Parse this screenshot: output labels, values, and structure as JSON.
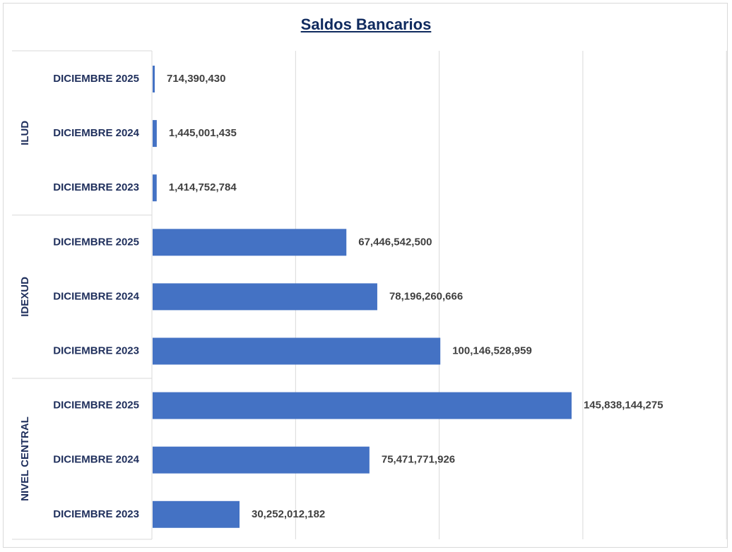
{
  "chart_data": {
    "type": "bar",
    "orientation": "horizontal",
    "title": "Saldos Bancarios",
    "xlabel": "",
    "ylabel": "",
    "xlim": [
      0,
      200000000000
    ],
    "grid": true,
    "legend": "none",
    "bar_color": "#4472c4",
    "groups": [
      {
        "name": "ILUD",
        "categories": [
          "DICIEMBRE 2025",
          "DICIEMBRE 2024",
          "DICIEMBRE 2023"
        ],
        "values": [
          714390430,
          1445001435,
          1414752784
        ],
        "labels": [
          "714,390,430",
          "1,445,001,435",
          "1,414,752,784"
        ]
      },
      {
        "name": "IDEXUD",
        "categories": [
          "DICIEMBRE 2025",
          "DICIEMBRE 2024",
          "DICIEMBRE 2023"
        ],
        "values": [
          67446542500,
          78196260666,
          100146528959
        ],
        "labels": [
          "67,446,542,500",
          "78,196,260,666",
          "100,146,528,959"
        ]
      },
      {
        "name": "NIVEL CENTRAL",
        "categories": [
          "DICIEMBRE 2025",
          "DICIEMBRE 2024",
          "DICIEMBRE 2023"
        ],
        "values": [
          145838144275,
          75471771926,
          30252012182
        ],
        "labels": [
          "145,838,144,275",
          "75,471,771,926",
          "30,252,012,182"
        ]
      }
    ]
  }
}
